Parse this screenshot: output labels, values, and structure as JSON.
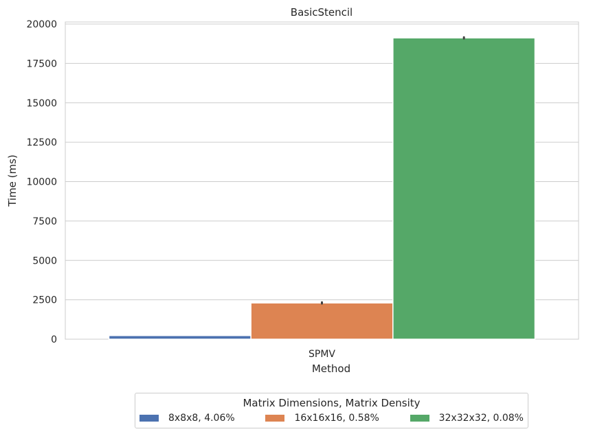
{
  "chart_data": {
    "type": "bar",
    "title": "BasicStencil",
    "xlabel": "Method",
    "ylabel": "Time (ms)",
    "categories": [
      "SPMV"
    ],
    "ylim": [
      0,
      20000
    ],
    "yticks": [
      "0",
      "2500",
      "5000",
      "7500",
      "10000",
      "12500",
      "15000",
      "17500",
      "20000"
    ],
    "grid": true,
    "legend": {
      "title": "Matrix Dimensions, Matrix Density",
      "placement": "bottom-center"
    },
    "series": [
      {
        "name": "8x8x8, 4.06%",
        "values": [
          230
        ],
        "error": [
          0
        ],
        "color": "#4c72b0"
      },
      {
        "name": "16x16x16, 0.58%",
        "values": [
          2300
        ],
        "error": [
          40
        ],
        "color": "#dd8452"
      },
      {
        "name": "32x32x32, 0.08%",
        "values": [
          19120
        ],
        "error": [
          40
        ],
        "color": "#55a868"
      }
    ]
  }
}
